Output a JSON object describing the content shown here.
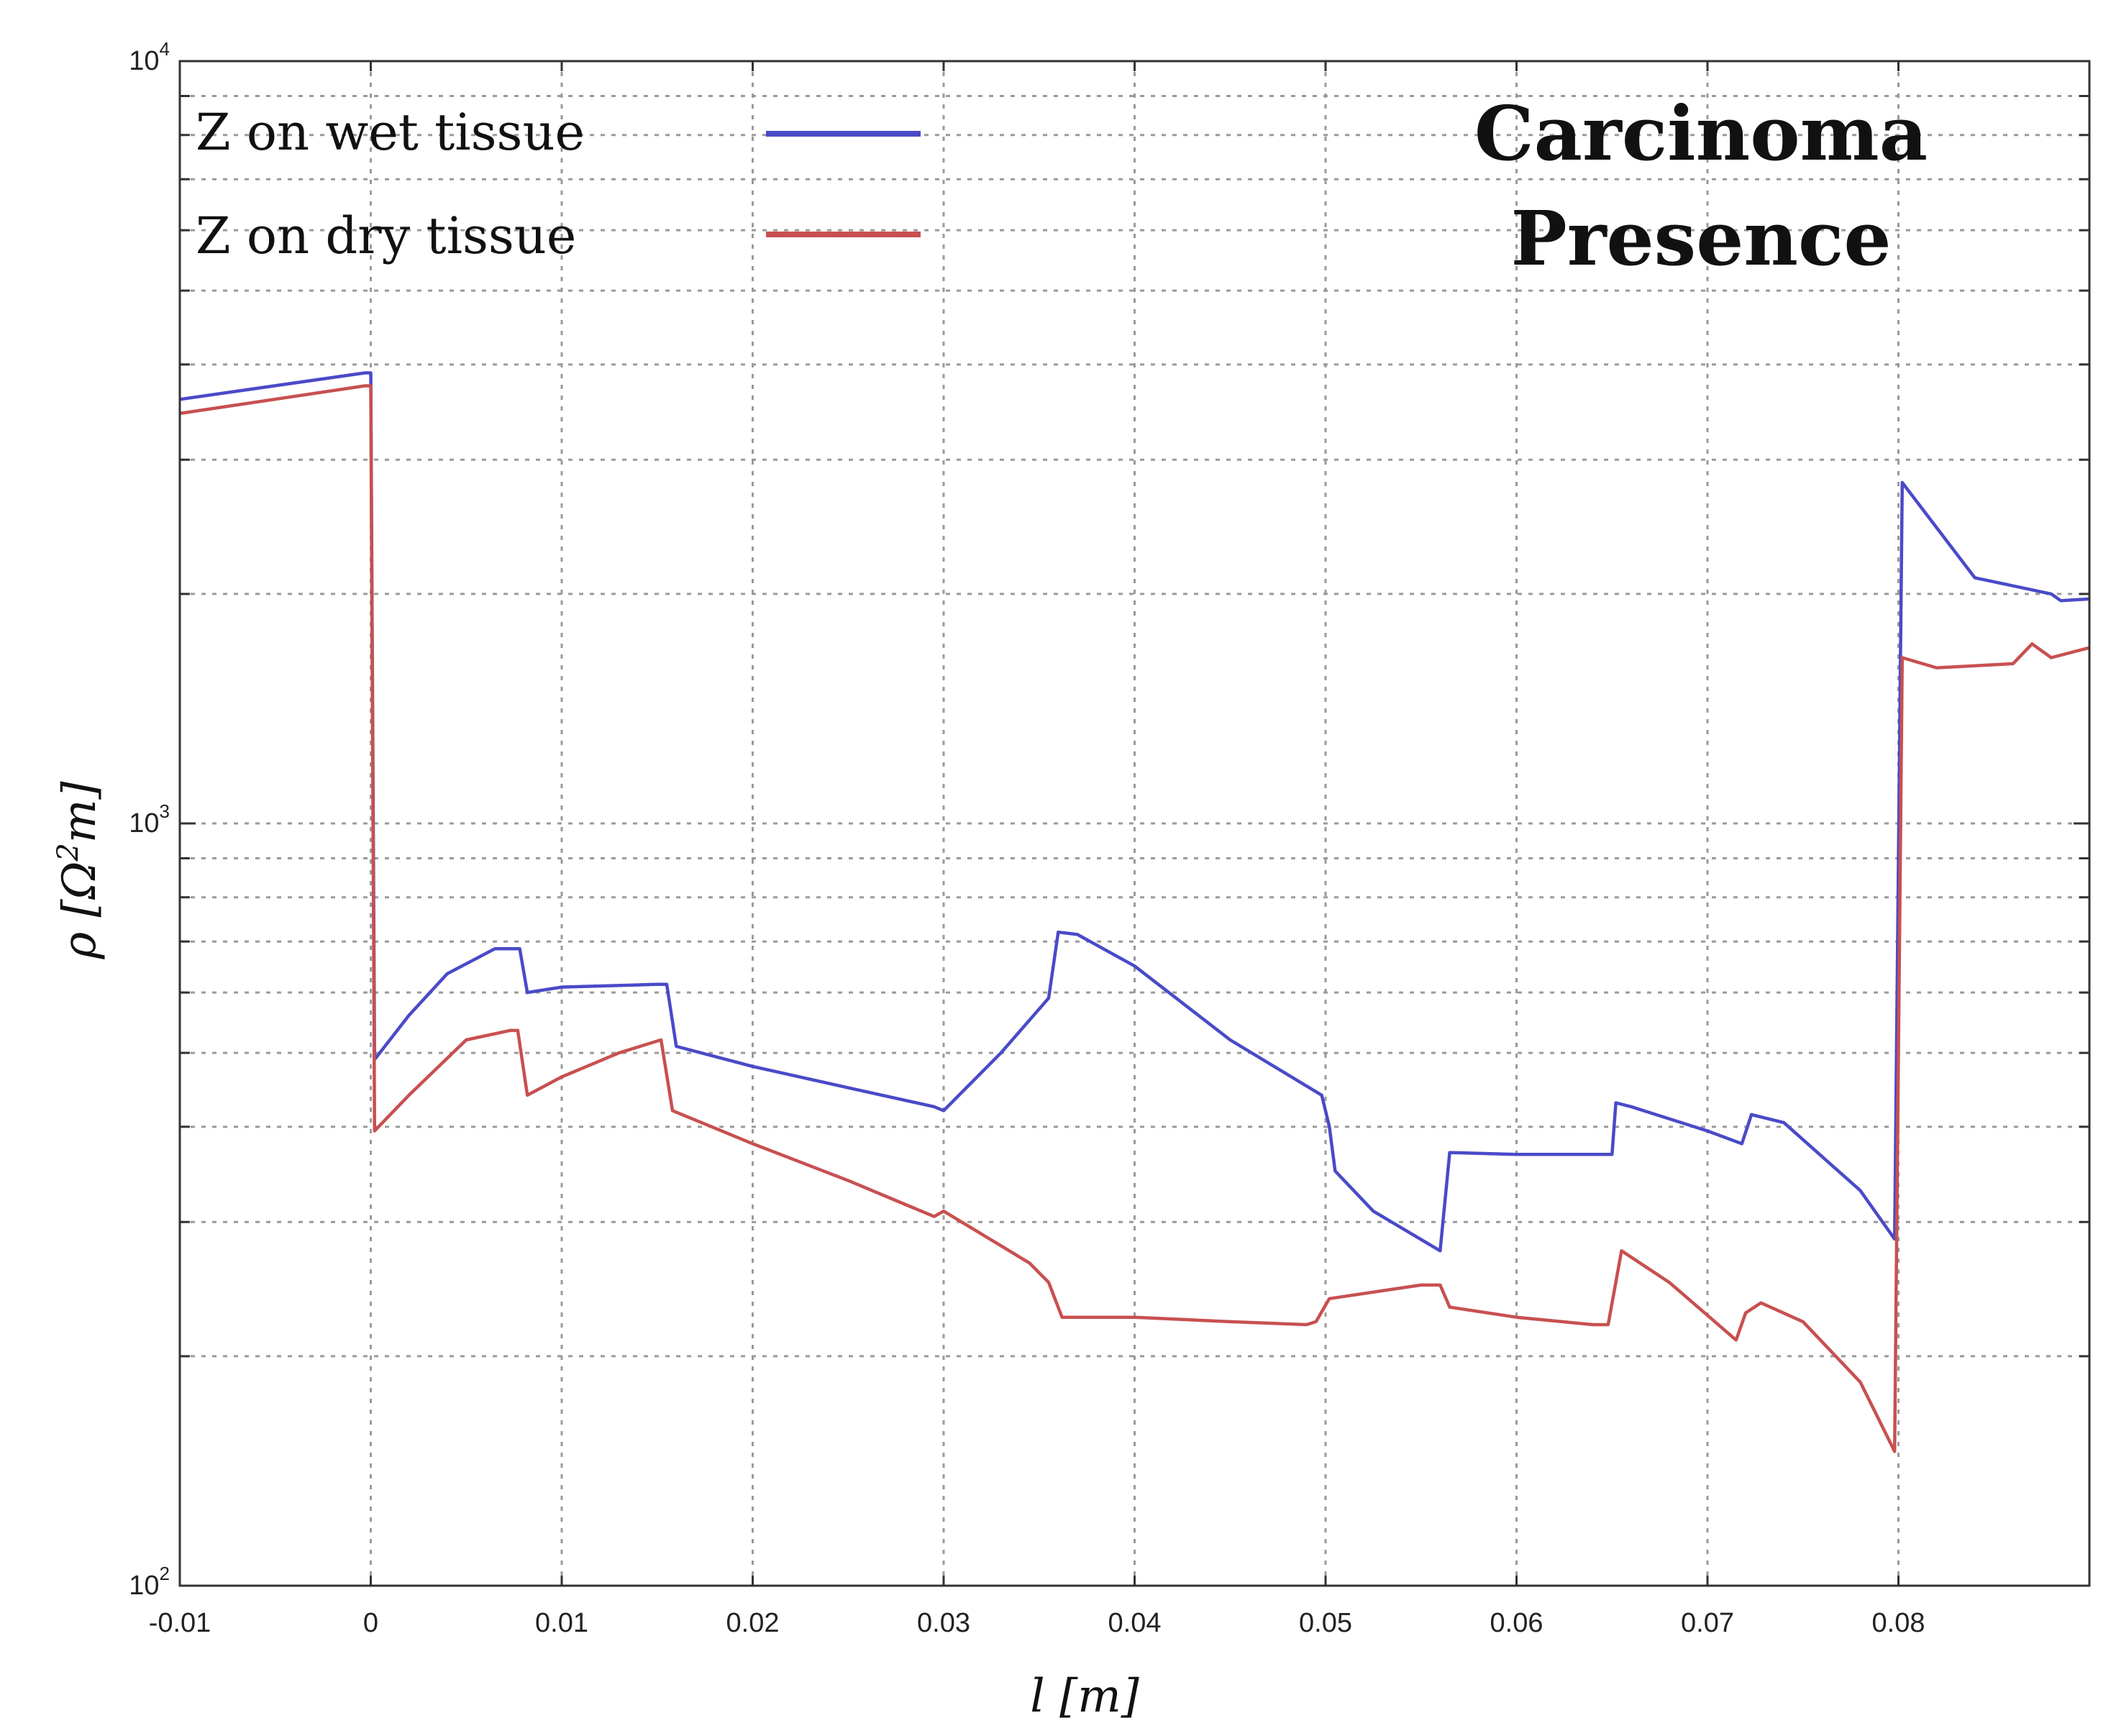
{
  "chart_data": {
    "type": "line",
    "title": "",
    "annotation": [
      "Carcinoma",
      "Presence"
    ],
    "xlabel": "l [m]",
    "ylabel_parts": [
      "ρ [Ω",
      "2",
      "m]"
    ],
    "xscale": "linear",
    "yscale": "log",
    "xlim": [
      -0.01,
      0.09
    ],
    "ylim": [
      100,
      10000
    ],
    "xticks": [
      -0.01,
      0,
      0.01,
      0.02,
      0.03,
      0.04,
      0.05,
      0.06,
      0.07,
      0.08
    ],
    "xtick_labels": [
      "-0.01",
      "0",
      "0.01",
      "0.02",
      "0.03",
      "0.04",
      "0.05",
      "0.06",
      "0.07",
      "0.08"
    ],
    "yticks": [
      {
        "value": 100,
        "base": "10",
        "exp": "2"
      },
      {
        "value": 1000,
        "base": "10",
        "exp": "3"
      },
      {
        "value": 10000,
        "base": "10",
        "exp": "4"
      }
    ],
    "grid": true,
    "legend_position": "top-left",
    "series": [
      {
        "name": "Z on wet tissue",
        "color": "#4a4ac8",
        "points": [
          [
            -0.01,
            3600
          ],
          [
            -0.0003,
            3900
          ],
          [
            0,
            3900
          ],
          [
            0.0002,
            490
          ],
          [
            0.002,
            560
          ],
          [
            0.004,
            635
          ],
          [
            0.0065,
            685
          ],
          [
            0.0078,
            685
          ],
          [
            0.0082,
            600
          ],
          [
            0.01,
            610
          ],
          [
            0.015,
            615
          ],
          [
            0.0155,
            615
          ],
          [
            0.016,
            510
          ],
          [
            0.02,
            480
          ],
          [
            0.025,
            450
          ],
          [
            0.0295,
            425
          ],
          [
            0.03,
            420
          ],
          [
            0.033,
            500
          ],
          [
            0.0355,
            590
          ],
          [
            0.036,
            720
          ],
          [
            0.037,
            715
          ],
          [
            0.04,
            650
          ],
          [
            0.045,
            520
          ],
          [
            0.0498,
            440
          ],
          [
            0.0502,
            400
          ],
          [
            0.0505,
            350
          ],
          [
            0.0525,
            310
          ],
          [
            0.056,
            275
          ],
          [
            0.0565,
            370
          ],
          [
            0.06,
            368
          ],
          [
            0.064,
            368
          ],
          [
            0.065,
            368
          ],
          [
            0.0652,
            430
          ],
          [
            0.066,
            425
          ],
          [
            0.07,
            395
          ],
          [
            0.0718,
            380
          ],
          [
            0.0723,
            415
          ],
          [
            0.074,
            405
          ],
          [
            0.078,
            330
          ],
          [
            0.0798,
            285
          ],
          [
            0.0802,
            2800
          ],
          [
            0.084,
            2100
          ],
          [
            0.088,
            2000
          ],
          [
            0.0885,
            1960
          ],
          [
            0.09,
            1970
          ]
        ]
      },
      {
        "name": "Z on dry tissue",
        "color": "#c85050",
        "points": [
          [
            -0.01,
            3450
          ],
          [
            -0.0003,
            3750
          ],
          [
            0,
            3750
          ],
          [
            0.0002,
            395
          ],
          [
            0.002,
            440
          ],
          [
            0.005,
            520
          ],
          [
            0.0073,
            535
          ],
          [
            0.0077,
            535
          ],
          [
            0.0082,
            440
          ],
          [
            0.01,
            465
          ],
          [
            0.013,
            500
          ],
          [
            0.0152,
            520
          ],
          [
            0.0158,
            420
          ],
          [
            0.02,
            380
          ],
          [
            0.025,
            340
          ],
          [
            0.0295,
            305
          ],
          [
            0.03,
            310
          ],
          [
            0.0345,
            265
          ],
          [
            0.0355,
            250
          ],
          [
            0.0362,
            225
          ],
          [
            0.04,
            225
          ],
          [
            0.045,
            222
          ],
          [
            0.049,
            220
          ],
          [
            0.0495,
            222
          ],
          [
            0.0502,
            238
          ],
          [
            0.055,
            248
          ],
          [
            0.056,
            248
          ],
          [
            0.0565,
            232
          ],
          [
            0.06,
            225
          ],
          [
            0.064,
            220
          ],
          [
            0.0648,
            220
          ],
          [
            0.0655,
            275
          ],
          [
            0.068,
            250
          ],
          [
            0.0715,
            210
          ],
          [
            0.072,
            228
          ],
          [
            0.0728,
            235
          ],
          [
            0.075,
            222
          ],
          [
            0.078,
            185
          ],
          [
            0.0798,
            150
          ],
          [
            0.0802,
            1650
          ],
          [
            0.082,
            1600
          ],
          [
            0.086,
            1620
          ],
          [
            0.087,
            1720
          ],
          [
            0.088,
            1650
          ],
          [
            0.09,
            1700
          ]
        ]
      }
    ]
  }
}
